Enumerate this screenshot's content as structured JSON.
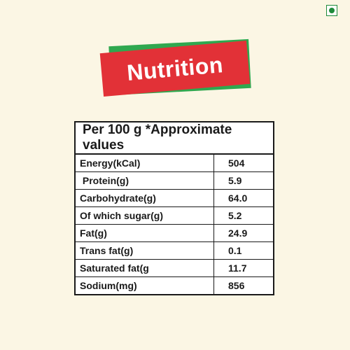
{
  "badge": {
    "icon": "veg-symbol-icon",
    "color": "#1d8a3a"
  },
  "banner": {
    "title": "Nutrition",
    "red": "#e23137",
    "green": "#2fa84f"
  },
  "table": {
    "header": "Per 100 g *Approximate values",
    "rows": [
      {
        "label": "Energy(kCal)",
        "value": "504"
      },
      {
        "label": " Protein(g)",
        "value": "5.9"
      },
      {
        "label": "Carbohydrate(g)",
        "value": "64.0"
      },
      {
        "label": "Of which sugar(g)",
        "value": "5.2"
      },
      {
        "label": "Fat(g)",
        "value": "24.9"
      },
      {
        "label": "Trans fat(g)",
        "value": "0.1"
      },
      {
        "label": "Saturated fat(g",
        "value": "11.7"
      },
      {
        "label": "Sodium(mg)",
        "value": "856"
      }
    ]
  }
}
